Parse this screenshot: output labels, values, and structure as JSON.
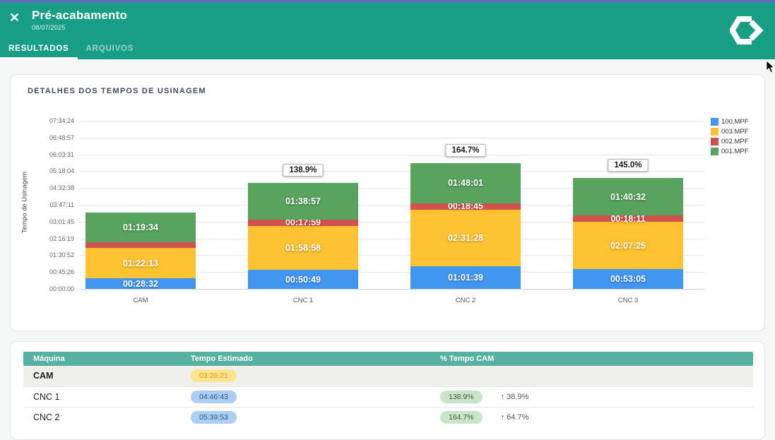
{
  "header": {
    "close": "✕",
    "title": "Pré-acabamento",
    "date": "08/07/2025",
    "tabs": [
      {
        "label": "RESULTADOS"
      },
      {
        "label": "ARQUIVOS"
      }
    ],
    "logo": "hexagon-chevron-logo",
    "accent_color": "#189e85"
  },
  "chart_card": {
    "title": "DETALHES DOS TEMPOS DE USINAGEM"
  },
  "chart_data": {
    "type": "bar",
    "stacked": true,
    "ylabel": "Tempo de Usinagem",
    "categories": [
      "CAM",
      "CNC 1",
      "CNC 2",
      "CNC 3"
    ],
    "y_ticks": [
      "00:00:00",
      "00:45:26",
      "01:30:52",
      "02:16:19",
      "03:01:45",
      "03:47:11",
      "04:32:38",
      "05:18:04",
      "06:03:31",
      "06:48:57",
      "07:34:24"
    ],
    "ylim": [
      "00:00:00",
      "07:34:24"
    ],
    "legend_position": "right",
    "series": [
      {
        "name": "100.MPF",
        "color": "#4196f0",
        "values": [
          "00:28:32",
          "00:50:49",
          "01:01:39",
          "00:53:05"
        ]
      },
      {
        "name": "003.MPF",
        "color": "#fcc22f",
        "values": [
          "01:22:13",
          "01:58:58",
          "02:31:28",
          "02:07:25"
        ]
      },
      {
        "name": "002.MPF",
        "color": "#d2514c",
        "values": [
          "00:16:02",
          "00:17:59",
          "00:18:45",
          "00:18:11"
        ],
        "hidden_value_labels": [
          0
        ]
      },
      {
        "name": "001.MPF",
        "color": "#58a35e",
        "values": [
          "01:19:34",
          "01:38:57",
          "01:48:01",
          "01:40:32"
        ]
      }
    ],
    "bar_annotations": [
      "",
      "138.9%",
      "164.7%",
      "145.0%"
    ]
  },
  "table": {
    "columns": [
      "Máquina",
      "Tempo Estimado",
      "% Tempo CAM"
    ],
    "rows": [
      {
        "machine": "CAM",
        "tempo": "03:26:21",
        "percent": "",
        "delta": ""
      },
      {
        "machine": "CNC 1",
        "tempo": "04:46:43",
        "percent": "138.9%",
        "delta": "↑ 38.9%"
      },
      {
        "machine": "CNC 2",
        "tempo": "05:39:53",
        "percent": "164.7%",
        "delta": "↑ 64.7%"
      }
    ]
  }
}
